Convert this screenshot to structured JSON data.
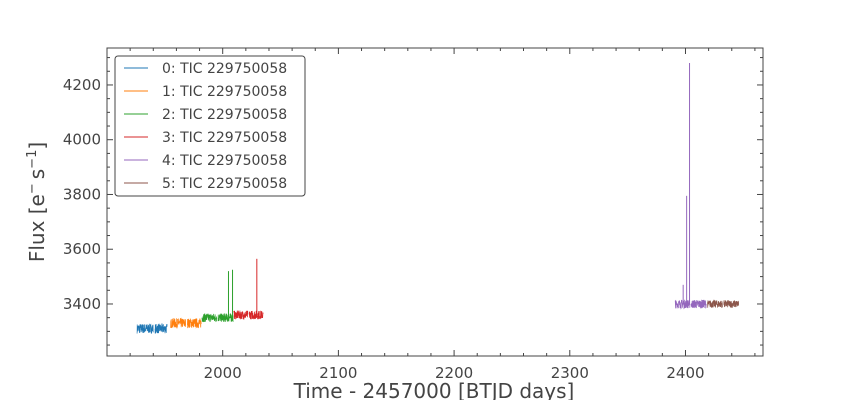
{
  "chart_data": {
    "type": "line",
    "title": "",
    "xlabel": "Time - 2457000 [BTJD days]",
    "ylabel_prefix": "Flux [e",
    "ylabel_sup1": "−",
    "ylabel_mid": "s",
    "ylabel_sup2": "−1",
    "ylabel_suffix": "]",
    "xlim": [
      1900,
      2467
    ],
    "ylim": [
      3210,
      4335
    ],
    "x_ticks": [
      2000,
      2100,
      2200,
      2300,
      2400
    ],
    "y_ticks": [
      3400,
      3600,
      3800,
      4000,
      4200
    ],
    "grid": false,
    "legend_position": "top-left",
    "series": [
      {
        "name": "0: TIC 229750058",
        "color": "#1f77b4",
        "segments": [
          [
            1926,
            1940
          ],
          [
            1941.5,
            1952
          ]
        ],
        "level": 3310,
        "noise": 18,
        "spikes": []
      },
      {
        "name": "1: TIC 229750058",
        "color": "#ff7f0e",
        "segments": [
          [
            1955,
            1968
          ],
          [
            1969.5,
            1981.5
          ]
        ],
        "level": 3330,
        "noise": 18,
        "spikes": []
      },
      {
        "name": "2: TIC 229750058",
        "color": "#2ca02c",
        "segments": [
          [
            1982,
            1995
          ],
          [
            1996,
            2009
          ]
        ],
        "level": 3350,
        "noise": 16,
        "spikes": [
          [
            2005,
            3520
          ],
          [
            2008.5,
            3525
          ]
        ]
      },
      {
        "name": "3: TIC 229750058",
        "color": "#d62728",
        "segments": [
          [
            2009.5,
            2022
          ],
          [
            2023,
            2035
          ]
        ],
        "level": 3360,
        "noise": 16,
        "spikes": [
          [
            2029.5,
            3565
          ]
        ]
      },
      {
        "name": "4: TIC 229750058",
        "color": "#9467bd",
        "segments": [
          [
            2391,
            2404
          ],
          [
            2405,
            2418
          ]
        ],
        "level": 3400,
        "noise": 16,
        "spikes": [
          [
            2398,
            3470
          ],
          [
            2401,
            3795
          ],
          [
            2403.5,
            4280
          ]
        ]
      },
      {
        "name": "5: TIC 229750058",
        "color": "#8c564b",
        "segments": [
          [
            2419,
            2432
          ],
          [
            2433,
            2446
          ]
        ],
        "level": 3400,
        "noise": 14,
        "spikes": []
      }
    ]
  }
}
